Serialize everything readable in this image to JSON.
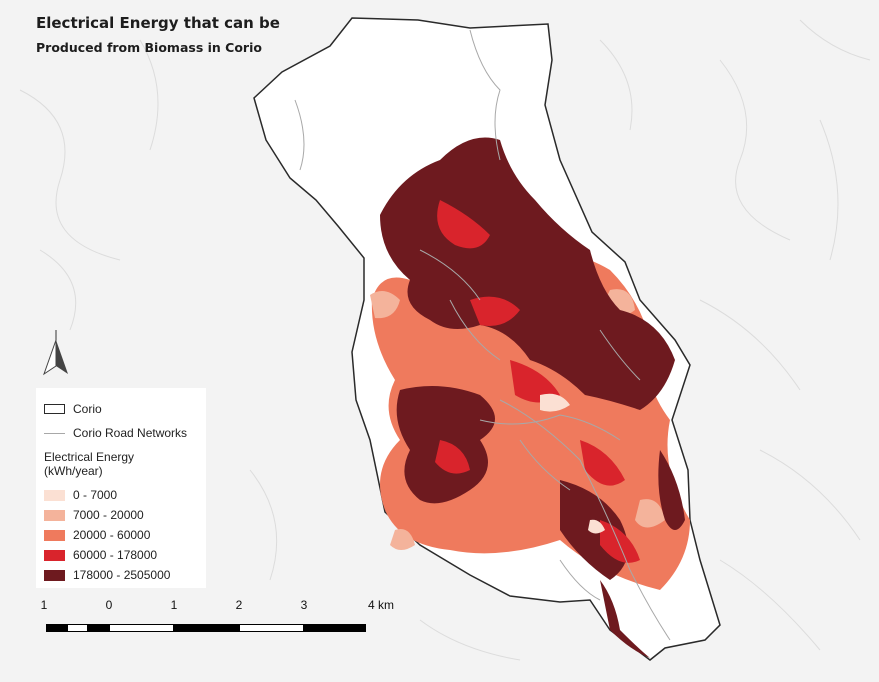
{
  "title_line1": "Electrical Energy that can be",
  "title_line2": "Produced from Biomass in Corio",
  "legend": {
    "boundary_label": "Corio",
    "roads_label": "Corio Road Networks",
    "energy_title_line1": "Electrical Energy",
    "energy_title_line2": "(kWh/year)",
    "classes": [
      {
        "label": "0 - 7000",
        "color": "#fbe0d3"
      },
      {
        "label": "7000 - 20000",
        "color": "#f4b39b"
      },
      {
        "label": "20000 - 60000",
        "color": "#ef7a5d"
      },
      {
        "label": "60000 - 178000",
        "color": "#d9242c"
      },
      {
        "label": "178000 - 2505000",
        "color": "#6e1a1f"
      }
    ]
  },
  "scale_bar": {
    "labels": [
      "1",
      "0",
      "1",
      "2",
      "3",
      "4 km"
    ]
  },
  "colors": {
    "background": "#f3f3f3",
    "boundary": "#2a2a2a",
    "roads": "#a8a8a8"
  },
  "icons": {
    "north_arrow": "north-arrow-icon"
  }
}
